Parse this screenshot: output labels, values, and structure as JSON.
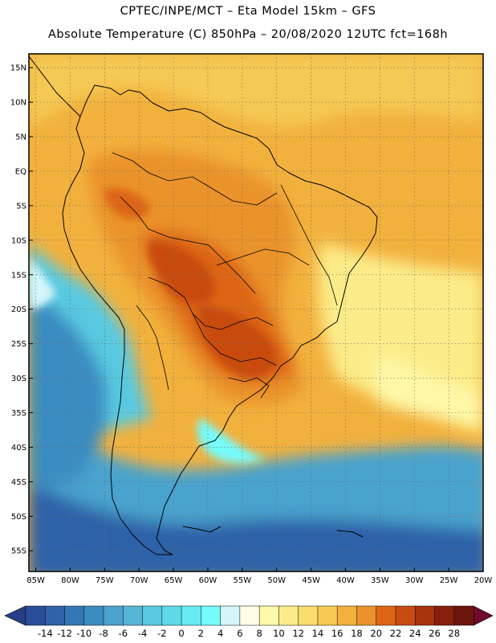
{
  "header": {
    "line1": "CPTEC/INPE/MCT –  Eta Model 15km – GFS",
    "line2": "Absolute Temperature (C) 850hPa – 20/08/2020 12UTC fct=168h"
  },
  "map": {
    "lat_ticks": [
      "15N",
      "10N",
      "5N",
      "EQ",
      "5S",
      "10S",
      "15S",
      "20S",
      "25S",
      "30S",
      "35S",
      "40S",
      "45S",
      "50S",
      "55S"
    ],
    "lat_values": [
      15,
      10,
      5,
      0,
      -5,
      -10,
      -15,
      -20,
      -25,
      -30,
      -35,
      -40,
      -45,
      -50,
      -55
    ],
    "lon_ticks": [
      "85W",
      "80W",
      "75W",
      "70W",
      "65W",
      "60W",
      "55W",
      "50W",
      "45W",
      "40W",
      "35W",
      "30W",
      "25W",
      "20W"
    ],
    "lon_values": [
      -85,
      -80,
      -75,
      -70,
      -65,
      -60,
      -55,
      -50,
      -45,
      -40,
      -35,
      -30,
      -25,
      -20
    ],
    "lat_range": [
      -58,
      17
    ],
    "lon_range": [
      -86,
      -20
    ]
  },
  "colorbar": {
    "labels": [
      "-14",
      "-12",
      "-10",
      "-8",
      "-6",
      "-4",
      "-2",
      "0",
      "2",
      "4",
      "6",
      "8",
      "10",
      "12",
      "14",
      "16",
      "18",
      "20",
      "22",
      "24",
      "26",
      "28"
    ],
    "colors": [
      "#2a4d9a",
      "#2f62a8",
      "#3577b4",
      "#3b8cc1",
      "#4aa3cd",
      "#56b6d6",
      "#59c9e1",
      "#5ed9ea",
      "#66ecf2",
      "#76fbfb",
      "#d4f6fb",
      "#fffbe6",
      "#fff8a8",
      "#fcec89",
      "#f8dd6c",
      "#f5c954",
      "#f2b13d",
      "#ea932b",
      "#dd6515",
      "#c84c10",
      "#a8330d",
      "#86200d",
      "#6c160d"
    ],
    "low_arrow_color": "#253e85",
    "high_arrow_color": "#6e0b2f"
  }
}
